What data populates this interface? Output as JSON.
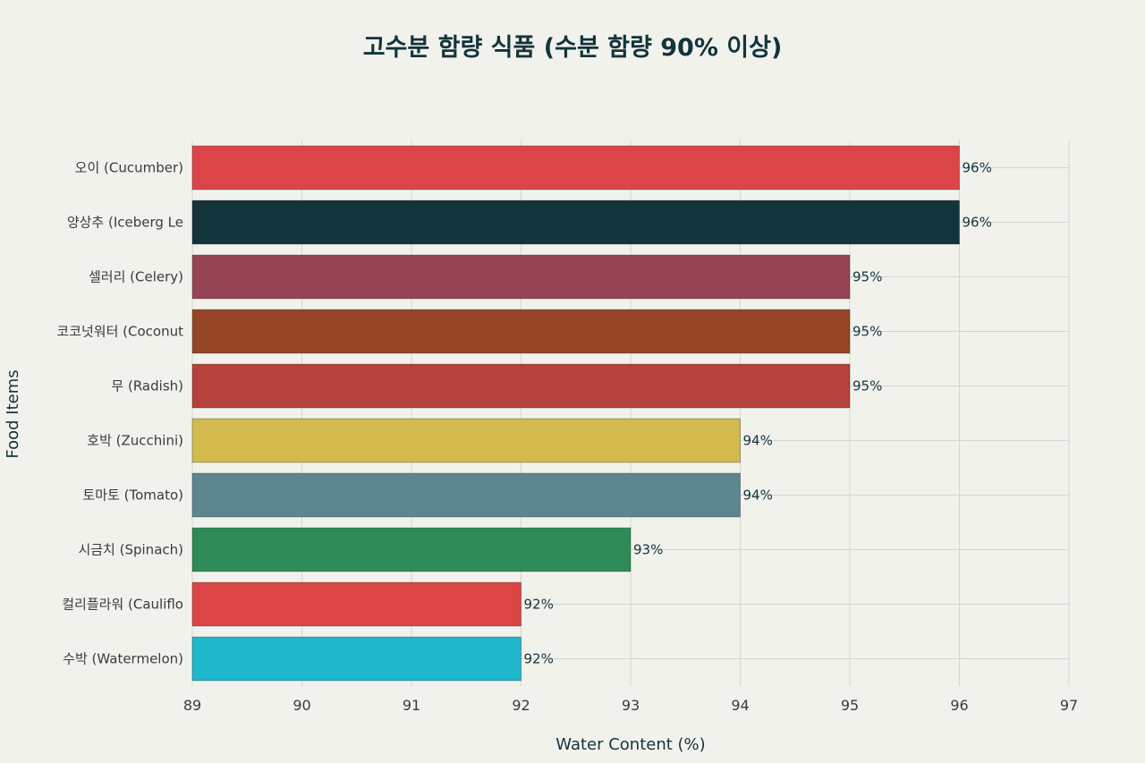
{
  "chart_data": {
    "type": "bar",
    "orientation": "horizontal",
    "title": "고수분 함량 식품 (수분 함량 90% 이상)",
    "xlabel": "Water Content (%)",
    "ylabel": "Food Items",
    "xlim": [
      89,
      97
    ],
    "xticks": [
      "89",
      "90",
      "91",
      "92",
      "93",
      "94",
      "95",
      "96",
      "97"
    ],
    "grid": true,
    "categories": [
      "오이 (Cucumber)",
      "양상추 (Iceberg Le",
      "셀러리 (Celery)",
      "코코넛워터 (Coconut",
      "무 (Radish)",
      "호박 (Zucchini)",
      "토마토 (Tomato)",
      "시금치 (Spinach)",
      "컬리플라워 (Cauliflo",
      "수박 (Watermelon)"
    ],
    "values": [
      96,
      96,
      95,
      95,
      95,
      94,
      94,
      93,
      92,
      92
    ],
    "data_labels": [
      "96%",
      "96%",
      "95%",
      "95%",
      "95%",
      "94%",
      "94%",
      "93%",
      "92%",
      "92%"
    ],
    "colors": [
      "#db4549",
      "#13343b",
      "#944454",
      "#944424",
      "#b4413c",
      "#d2ba4c",
      "#5d878f",
      "#2e8b57",
      "#db4545",
      "#1fb8cd"
    ]
  }
}
